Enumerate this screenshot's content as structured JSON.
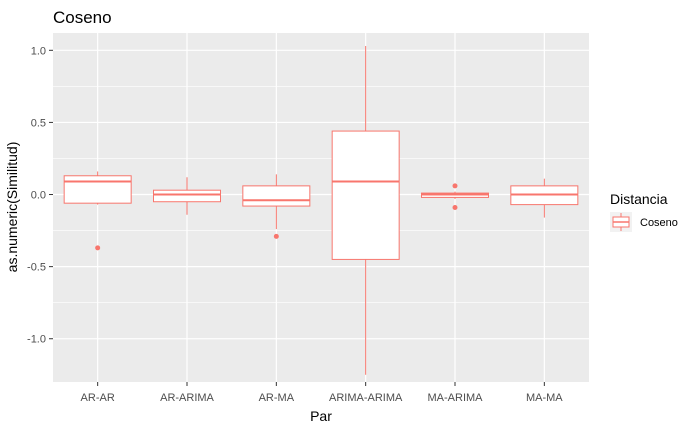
{
  "chart_data": {
    "type": "boxplot",
    "title": "Coseno",
    "xlabel": "Par",
    "ylabel": "as.numeric(Similitud)",
    "categories": [
      "AR-AR",
      "AR-ARIMA",
      "AR-MA",
      "ARIMA-ARIMA",
      "MA-ARIMA",
      "MA-MA"
    ],
    "y_ticks": [
      1.0,
      0.5,
      0.0,
      -0.5,
      -1.0
    ],
    "y_tick_labels": [
      "1.0",
      "0.5",
      "0.0",
      "-0.5",
      "-1.0"
    ],
    "ylim": [
      -1.3,
      1.12
    ],
    "grid": true,
    "legend": {
      "title": "Distancia",
      "entries": [
        "Coseno"
      ],
      "position": "right"
    },
    "series": [
      {
        "name": "Coseno",
        "color": "#F8766D",
        "boxes": [
          {
            "category": "AR-AR",
            "whisker_low": -0.07,
            "q1": -0.06,
            "median": 0.09,
            "q3": 0.13,
            "whisker_high": 0.16,
            "outliers": [
              -0.37
            ]
          },
          {
            "category": "AR-ARIMA",
            "whisker_low": -0.14,
            "q1": -0.05,
            "median": 0.0,
            "q3": 0.03,
            "whisker_high": 0.12,
            "outliers": []
          },
          {
            "category": "AR-MA",
            "whisker_low": -0.24,
            "q1": -0.08,
            "median": -0.04,
            "q3": 0.06,
            "whisker_high": 0.14,
            "outliers": [
              -0.29
            ]
          },
          {
            "category": "ARIMA-ARIMA",
            "whisker_low": -1.25,
            "q1": -0.45,
            "median": 0.09,
            "q3": 0.44,
            "whisker_high": 1.03,
            "outliers": []
          },
          {
            "category": "MA-ARIMA",
            "whisker_low": -0.03,
            "q1": -0.02,
            "median": 0.0,
            "q3": 0.01,
            "whisker_high": 0.02,
            "outliers": [
              0.06,
              -0.09
            ]
          },
          {
            "category": "MA-MA",
            "whisker_low": -0.16,
            "q1": -0.07,
            "median": 0.0,
            "q3": 0.06,
            "whisker_high": 0.11,
            "outliers": []
          }
        ]
      }
    ]
  }
}
